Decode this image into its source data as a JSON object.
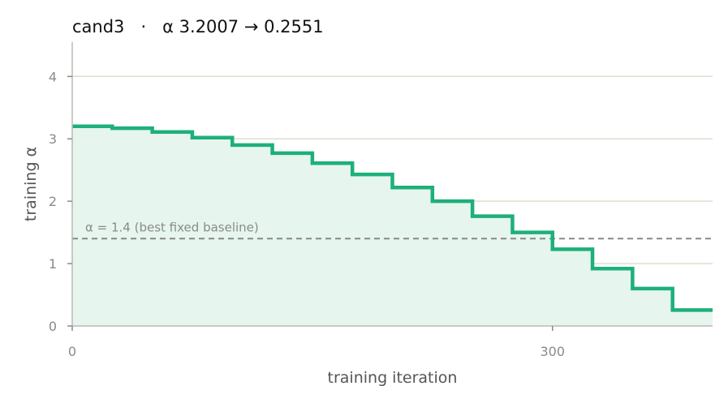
{
  "chart_data": {
    "type": "line",
    "step": true,
    "title": "cand3   ·   α 3.2007 → 0.2551",
    "xlabel": "training iteration",
    "ylabel": "training α",
    "xlim": [
      0,
      400
    ],
    "ylim": [
      0,
      4.55
    ],
    "x_ticks": [
      0,
      300
    ],
    "x_tick_labels": [
      "0",
      "300"
    ],
    "y_ticks": [
      0,
      1,
      2,
      3,
      4
    ],
    "y_tick_labels": [
      "0",
      "1",
      "2",
      "3",
      "4"
    ],
    "grid": "horizontal",
    "series": [
      {
        "color": "#1db07a",
        "fill": "#e6f5ee",
        "x": [
          0,
          25,
          50,
          75,
          100,
          125,
          150,
          175,
          200,
          225,
          250,
          275,
          300,
          325,
          350,
          375,
          400
        ],
        "values": [
          3.2007,
          3.17,
          3.11,
          3.02,
          2.9,
          2.77,
          2.61,
          2.43,
          2.22,
          2.0,
          1.76,
          1.5,
          1.23,
          0.92,
          0.6,
          0.2551,
          0.2551
        ]
      }
    ],
    "reference_line": {
      "y": 1.4,
      "label": "α = 1.4 (best fixed baseline)",
      "color": "#888888",
      "style": "dashed"
    }
  }
}
